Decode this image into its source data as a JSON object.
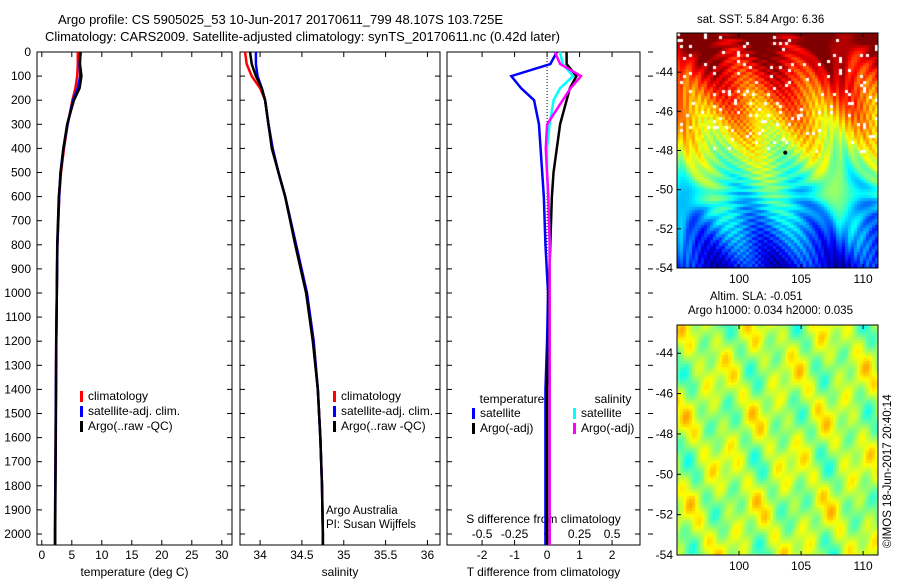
{
  "title_line1": "Argo profile: CS 5905025_53 10-Jun-2017 20170611_799 48.107S 103.725E",
  "title_line2": "Climatology: CARS2009. Satellite-adjusted climatology: synTS_20170611.nc (0.42d later)",
  "colors": {
    "climatology": "#ff0000",
    "satellite": "#0000ff",
    "argo": "#000000",
    "s_satellite": "#00ffff",
    "s_argo": "#ff00ff"
  },
  "chart_data": [
    {
      "type": "line",
      "name": "temperature",
      "xlabel": "temperature (deg C)",
      "ylabel": "",
      "xlim": [
        -0.8,
        31.7
      ],
      "ylim": [
        2140,
        0
      ],
      "xticks": [
        0,
        5,
        10,
        15,
        20,
        25,
        30
      ],
      "yticks": [
        0,
        100,
        200,
        300,
        400,
        500,
        600,
        700,
        800,
        900,
        1000,
        1100,
        1200,
        1300,
        1400,
        1500,
        1600,
        1700,
        1800,
        1900,
        2000
      ],
      "depth": [
        0,
        50,
        100,
        150,
        200,
        300,
        400,
        500,
        600,
        800,
        1000,
        1200,
        1400,
        1600,
        1800,
        2000,
        2100
      ],
      "series": [
        {
          "name": "climatology",
          "color": "#ff0000",
          "values": [
            6.0,
            6.0,
            5.9,
            5.6,
            5.1,
            4.3,
            3.7,
            3.2,
            2.9,
            2.6,
            2.5,
            2.4,
            2.35,
            2.3,
            2.25,
            2.2,
            2.2
          ]
        },
        {
          "name": "satellite-adj. clim.",
          "color": "#0000ff",
          "values": [
            6.5,
            6.3,
            6.4,
            6.0,
            5.2,
            4.3,
            3.6,
            3.1,
            2.9,
            2.6,
            2.5,
            2.4,
            2.35,
            2.3,
            2.25,
            2.2,
            2.2
          ]
        },
        {
          "name": "Argo(..raw -QC)",
          "color": "#000000",
          "values": [
            6.4,
            6.3,
            6.5,
            6.2,
            5.3,
            4.2,
            3.6,
            3.2,
            2.9,
            2.6,
            2.5,
            2.4,
            2.35,
            2.3,
            2.25,
            2.2,
            2.2
          ]
        }
      ]
    },
    {
      "type": "line",
      "name": "salinity",
      "xlabel": "salinity",
      "xlim": [
        33.76,
        36.15
      ],
      "ylim": [
        2140,
        0
      ],
      "xticks": [
        34,
        34.5,
        35,
        35.5,
        36
      ],
      "depth": [
        0,
        50,
        100,
        150,
        200,
        300,
        400,
        500,
        600,
        800,
        1000,
        1200,
        1400,
        1600,
        1800,
        2000,
        2100
      ],
      "series": [
        {
          "name": "climatology",
          "color": "#ff0000",
          "values": [
            33.82,
            33.84,
            33.9,
            34.0,
            34.06,
            34.1,
            34.15,
            34.22,
            34.3,
            34.43,
            34.56,
            34.64,
            34.69,
            34.72,
            34.74,
            34.75,
            34.75
          ]
        },
        {
          "name": "satellite-adj. clim.",
          "color": "#0000ff",
          "values": [
            33.95,
            33.95,
            33.97,
            34.02,
            34.06,
            34.1,
            34.15,
            34.22,
            34.3,
            34.43,
            34.56,
            34.64,
            34.69,
            34.72,
            34.74,
            34.75,
            34.75
          ]
        },
        {
          "name": "Argo(..raw -QC)",
          "color": "#000000",
          "values": [
            33.88,
            33.9,
            33.95,
            34.02,
            34.06,
            34.1,
            34.14,
            34.22,
            34.3,
            34.42,
            34.55,
            34.63,
            34.69,
            34.72,
            34.74,
            34.75,
            34.75
          ]
        }
      ],
      "annotation": [
        "Argo Australia",
        "PI: Susan Wijffels"
      ]
    },
    {
      "type": "line",
      "name": "difference",
      "xlabel": "T difference from climatology",
      "x2label": "S difference from climatology",
      "xlim": [
        -3.08,
        2.86
      ],
      "ylim": [
        2140,
        0
      ],
      "xticks": [
        -2,
        -1,
        0,
        1,
        2
      ],
      "x2ticks": [
        -0.5,
        -0.25,
        0,
        0.25,
        0.5
      ],
      "x2ticklabels": [
        "-0.5",
        "-0.25",
        "0",
        "0.25",
        "0.5"
      ],
      "depth": [
        0,
        50,
        100,
        150,
        200,
        300,
        400,
        500,
        600,
        800,
        1000,
        1200,
        1400,
        1600,
        1800,
        2000,
        2100
      ],
      "legend_headers": [
        "temperature",
        "salinity"
      ],
      "series": [
        {
          "name": "satellite",
          "group": "temperature",
          "units": "T",
          "color": "#0000ff",
          "values": [
            0.3,
            0.1,
            -1.1,
            -0.8,
            -0.4,
            -0.25,
            -0.2,
            -0.15,
            -0.1,
            -0.05,
            0.03,
            0,
            -0.05,
            -0.05,
            -0.05,
            -0.05,
            -0.05
          ]
        },
        {
          "name": "Argo(-adj)",
          "group": "temperature",
          "units": "T",
          "color": "#000000",
          "values": [
            0.6,
            0.6,
            0.9,
            0.7,
            0.6,
            0.4,
            0.3,
            0.2,
            0.15,
            0.1,
            0.05,
            0.03,
            0,
            0,
            0,
            0,
            0
          ]
        },
        {
          "name": "satellite",
          "group": "salinity",
          "units": "S",
          "color": "#00ffff",
          "values": [
            0.1,
            0.12,
            0.2,
            0.1,
            0.05,
            0.02,
            0,
            0,
            0.01,
            0.02,
            0.02,
            0.02,
            0.02,
            0.02,
            0.02,
            0.02,
            0.02
          ]
        },
        {
          "name": "Argo(-adj)",
          "group": "salinity",
          "units": "S",
          "color": "#ff00ff",
          "values": [
            0.06,
            0.1,
            0.26,
            0.18,
            0.12,
            0,
            -0.01,
            0,
            0.01,
            0.02,
            0.02,
            0.02,
            0.02,
            0.02,
            0.02,
            0.02,
            0.02
          ]
        }
      ]
    },
    {
      "type": "heatmap",
      "name": "sst_map",
      "title": "sat. SST: 5.84  Argo: 6.36",
      "xlim": [
        95,
        111.2
      ],
      "ylim": [
        -54,
        -42
      ],
      "xticks": [
        100,
        105,
        110
      ],
      "yticks": [
        -44,
        -46,
        -48,
        -50,
        -52,
        -54
      ]
    },
    {
      "type": "heatmap",
      "name": "sla_map",
      "title_line1": "Altim. SLA: -0.051",
      "title_line2": "Argo h1000: 0.034 h2000: 0.035",
      "xlim": [
        95,
        111.2
      ],
      "ylim": [
        -54,
        -42.6
      ],
      "xticks": [
        100,
        105,
        110
      ],
      "yticks": [
        -44,
        -46,
        -48,
        -50,
        -52,
        -54
      ]
    }
  ],
  "side_label": "©IMOS 18-Jun-2017 20:40:14"
}
